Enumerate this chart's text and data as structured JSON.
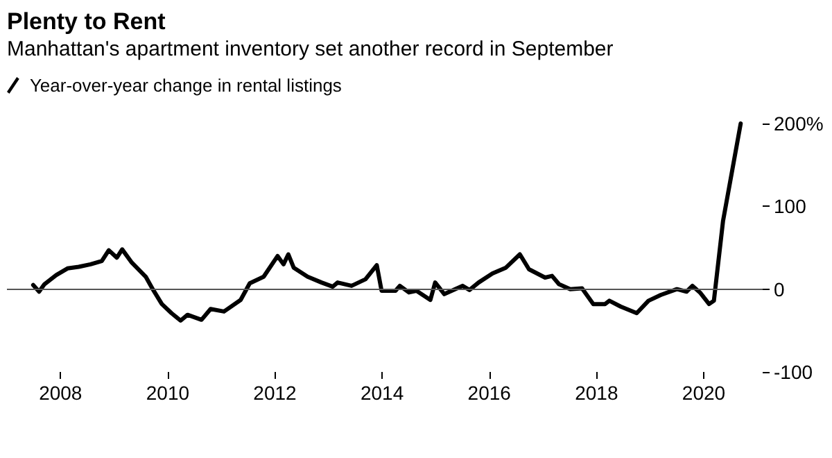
{
  "chart_data": {
    "type": "line",
    "title": "Plenty to Rent",
    "subtitle": "Manhattan's apartment inventory set another record in September",
    "series": [
      {
        "name": "Year-over-year change in rental listings",
        "color": "#000000",
        "x": [
          2007.49,
          2007.6,
          2007.7,
          2007.92,
          2008.13,
          2008.34,
          2008.56,
          2008.77,
          2008.9,
          2009.05,
          2009.15,
          2009.33,
          2009.59,
          2009.72,
          2009.89,
          2010.07,
          2010.24,
          2010.37,
          2010.63,
          2010.8,
          2011.05,
          2011.36,
          2011.53,
          2011.79,
          2012.05,
          2012.16,
          2012.25,
          2012.35,
          2012.61,
          2012.87,
          2013.08,
          2013.17,
          2013.43,
          2013.69,
          2013.9,
          2013.99,
          2014.25,
          2014.33,
          2014.5,
          2014.64,
          2014.9,
          2014.99,
          2015.16,
          2015.5,
          2015.63,
          2015.8,
          2016.06,
          2016.31,
          2016.57,
          2016.74,
          2017.04,
          2017.17,
          2017.3,
          2017.51,
          2017.73,
          2017.94,
          2018.16,
          2018.24,
          2018.45,
          2018.75,
          2018.97,
          2019.2,
          2019.5,
          2019.68,
          2019.79,
          2019.93,
          2020.1,
          2020.19,
          2020.36,
          2020.69
        ],
        "values": [
          5,
          -3,
          6,
          17,
          25,
          27,
          30,
          34,
          47,
          38,
          48,
          32,
          15,
          0,
          -18,
          -29,
          -38,
          -31,
          -37,
          -24,
          -27,
          -13,
          7,
          15,
          40,
          30,
          42,
          26,
          15,
          8,
          3,
          8,
          4,
          12,
          29,
          -2,
          -2,
          4,
          -4,
          -2,
          -13,
          8,
          -6,
          4,
          -1,
          8,
          19,
          26,
          42,
          24,
          14,
          16,
          6,
          0,
          1,
          -18,
          -18,
          -14,
          -21,
          -29,
          -14,
          -7,
          0,
          -3,
          4,
          -4,
          -18,
          -14,
          82,
          200
        ]
      }
    ],
    "xlim": [
      2007,
      2021.1
    ],
    "xticks": [
      2008,
      2010,
      2012,
      2014,
      2016,
      2018,
      2020
    ],
    "ylim": [
      -100,
      200
    ],
    "yticks": [
      {
        "value": 200,
        "label": "200%"
      },
      100,
      0,
      -100
    ],
    "ref_lines": [
      {
        "axis": "y",
        "value": 0,
        "color": "#555555"
      }
    ],
    "grid": false,
    "legend": "top left",
    "marker": "none",
    "line_style": "solid"
  }
}
